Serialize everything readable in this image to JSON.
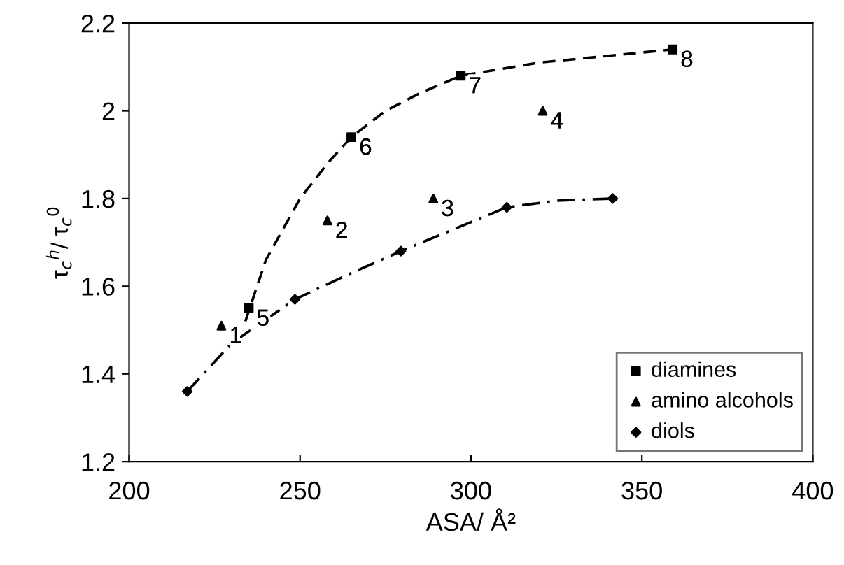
{
  "chart_data": {
    "type": "scatter",
    "xlabel": "ASA/ Å²",
    "ylabel": "τ$_{c}$$^{h}$/ τ$_{c}$$^{0}$",
    "xlim": [
      200,
      400
    ],
    "xticks": [
      200,
      250,
      300,
      350,
      400
    ],
    "ylim": [
      1.2,
      2.2
    ],
    "yticks": [
      1.2,
      1.4,
      1.6,
      1.8,
      2,
      2.2
    ],
    "grid": false,
    "legend": "bottom right",
    "series": [
      {
        "name": "diamines",
        "type": "scatter",
        "marker": "square",
        "color": "#000000",
        "x": [
          235,
          265,
          297,
          359
        ],
        "values": [
          1.55,
          1.94,
          2.08,
          2.14
        ]
      },
      {
        "name": "amino alcohols",
        "type": "scatter",
        "marker": "triangle",
        "color": "#000000",
        "x": [
          227,
          258,
          289,
          321
        ],
        "values": [
          1.51,
          1.75,
          1.8,
          2.0
        ]
      },
      {
        "name": "diols",
        "type": "scatter",
        "marker": "diamond",
        "color": "#000000",
        "x": [
          217,
          248.5,
          279.5,
          310.5,
          341.5
        ],
        "values": [
          1.36,
          1.57,
          1.68,
          1.78,
          1.8
        ]
      },
      {
        "type": "line",
        "line_style": "dashed",
        "color": "#000000",
        "x": [
          234,
          240,
          250,
          258,
          265,
          275,
          285,
          297,
          320,
          359
        ],
        "values": [
          1.52,
          1.66,
          1.8,
          1.88,
          1.94,
          2.0,
          2.04,
          2.08,
          2.11,
          2.14
        ]
      },
      {
        "type": "line",
        "line_style": "dashdot",
        "color": "#000000",
        "x": [
          217,
          230,
          248.5,
          265,
          279.5,
          295,
          310.5,
          325,
          341.5
        ],
        "values": [
          1.36,
          1.47,
          1.57,
          1.63,
          1.68,
          1.73,
          1.78,
          1.795,
          1.8
        ]
      }
    ],
    "annotations": [
      {
        "text": "1",
        "x": 227,
        "y": 1.51
      },
      {
        "text": "2",
        "x": 258,
        "y": 1.75
      },
      {
        "text": "3",
        "x": 289,
        "y": 1.8
      },
      {
        "text": "4",
        "x": 321,
        "y": 2.0
      },
      {
        "text": "5",
        "x": 235,
        "y": 1.55
      },
      {
        "text": "6",
        "x": 265,
        "y": 1.94
      },
      {
        "text": "7",
        "x": 297,
        "y": 2.08
      },
      {
        "text": "8",
        "x": 359,
        "y": 2.14
      }
    ]
  }
}
